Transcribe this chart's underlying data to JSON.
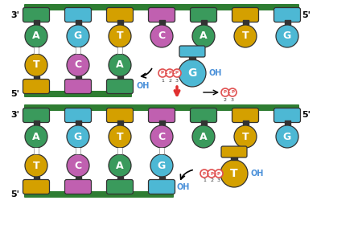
{
  "top_strand_labels": [
    "A",
    "G",
    "T",
    "C",
    "A",
    "T",
    "G"
  ],
  "top_strand_colors": [
    "#3a9a5c",
    "#4db8d4",
    "#d4a000",
    "#c060b0",
    "#3a9a5c",
    "#d4a000",
    "#4db8d4"
  ],
  "bottom1_labels": [
    "T",
    "C",
    "A"
  ],
  "bottom1_colors": [
    "#d4a000",
    "#c060b0",
    "#3a9a5c"
  ],
  "incoming1_label": "G",
  "incoming1_color": "#4db8d4",
  "bottom2_labels": [
    "T",
    "C",
    "A",
    "G"
  ],
  "bottom2_colors": [
    "#d4a000",
    "#c060b0",
    "#3a9a5c",
    "#4db8d4"
  ],
  "incoming2_label": "T",
  "incoming2_color": "#d4a000",
  "backbone_color": "#2e7d32",
  "connector_color": "#2e7d32",
  "phosphate_color": "#e05050",
  "oh_color": "#4a90d9",
  "arrow_color_red": "#e03030",
  "bg_color": "#ffffff",
  "label_3prime": "3'",
  "label_5prime": "5'",
  "label_5prime_bottom": "5'",
  "oh_text": "OH",
  "p_labels": [
    "3",
    "2",
    "1"
  ],
  "p_labels2": [
    "3",
    "2"
  ]
}
